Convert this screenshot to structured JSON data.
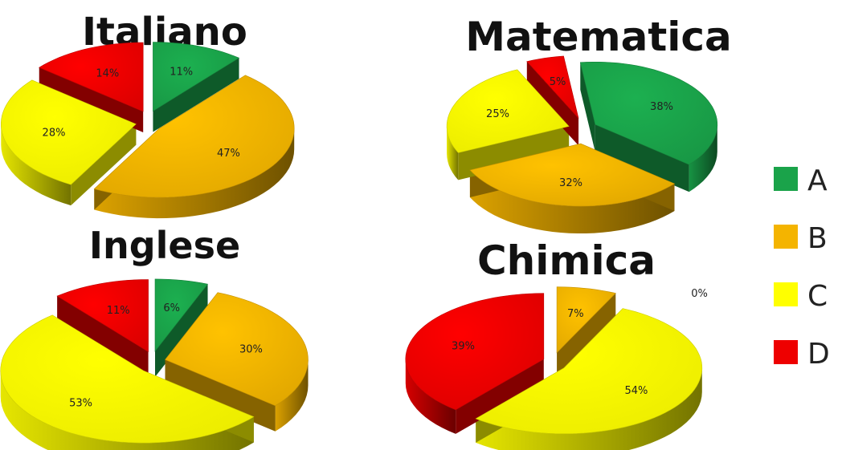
{
  "colors": {
    "A": "#1aa34a",
    "B": "#f4b400",
    "C": "#ffff00",
    "D": "#ee0000"
  },
  "legend": [
    {
      "key": "A",
      "label": "A"
    },
    {
      "key": "B",
      "label": "B"
    },
    {
      "key": "C",
      "label": "C"
    },
    {
      "key": "D",
      "label": "D"
    }
  ],
  "chart_data": [
    {
      "type": "pie",
      "title": "Italiano",
      "categories": [
        "A",
        "B",
        "C",
        "D"
      ],
      "values": [
        11,
        47,
        28,
        14
      ],
      "labels": [
        "11%",
        "47%",
        "28%",
        "14%"
      ]
    },
    {
      "type": "pie",
      "title": "Matematica",
      "categories": [
        "A",
        "B",
        "C",
        "D"
      ],
      "values": [
        38,
        32,
        25,
        5
      ],
      "labels": [
        "38%",
        "32%",
        "25%",
        "5%"
      ]
    },
    {
      "type": "pie",
      "title": "Inglese",
      "categories": [
        "A",
        "B",
        "C",
        "D"
      ],
      "values": [
        6,
        30,
        53,
        11
      ],
      "labels": [
        "6%",
        "30%",
        "53%",
        "11%"
      ]
    },
    {
      "type": "pie",
      "title": "Chimica",
      "categories": [
        "A",
        "B",
        "C",
        "D"
      ],
      "values": [
        0,
        7,
        54,
        39
      ],
      "labels": [
        "0%",
        "7%",
        "54%",
        "39%"
      ]
    }
  ]
}
